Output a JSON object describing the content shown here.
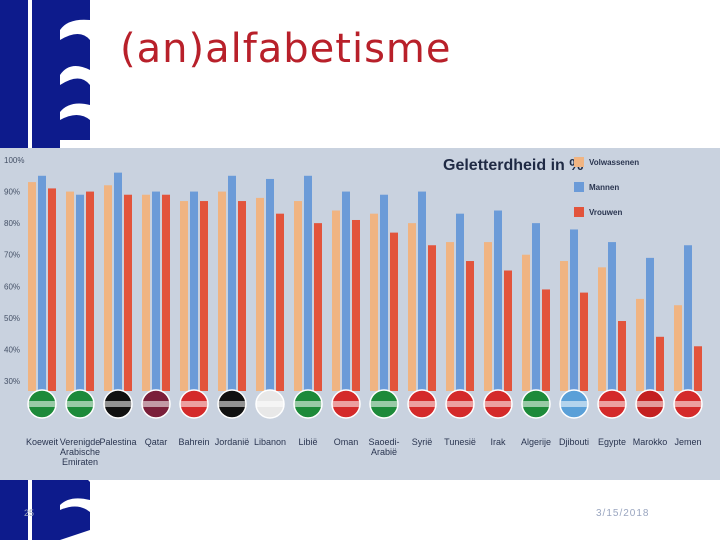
{
  "slide": {
    "title": "(an)alfabetisme",
    "number": "25",
    "date": "3/15/2018"
  },
  "colors": {
    "title": "#b8202a",
    "left_bar": "#0d1b8c",
    "volwassenen": "#f0b482",
    "mannen": "#6b9bd8",
    "vrouwen": "#e2543c",
    "chart_bg": "#c9d2df"
  },
  "chart_data": {
    "type": "bar",
    "title": "Geletterdheid in %",
    "ylim": [
      30,
      100
    ],
    "yticks": [
      "30%",
      "40%",
      "50%",
      "60%",
      "70%",
      "80%",
      "90%",
      "100%"
    ],
    "legend_position": "top-right",
    "grid": false,
    "categories": [
      [
        "Koeweit"
      ],
      [
        "Verenigde",
        "Arabische",
        "Emiraten"
      ],
      [
        "Palestina"
      ],
      [
        "Qatar"
      ],
      [
        "Bahrein"
      ],
      [
        "Jordanië"
      ],
      [
        "Libanon"
      ],
      [
        "Libië"
      ],
      [
        "Oman"
      ],
      [
        "Saoedi-",
        "Arabië"
      ],
      [
        "Syrië"
      ],
      [
        "Tunesië"
      ],
      [
        "Irak"
      ],
      [
        "Algerije"
      ],
      [
        "Djibouti"
      ],
      [
        "Egypte"
      ],
      [
        "Marokko"
      ],
      [
        "Jemen"
      ]
    ],
    "series": [
      {
        "name": "Volwassenen",
        "values": [
          93,
          90,
          92,
          89,
          87,
          90,
          88,
          87,
          84,
          83,
          80,
          74,
          74,
          70,
          68,
          66,
          56,
          54
        ]
      },
      {
        "name": "Mannen",
        "values": [
          95,
          89,
          96,
          90,
          90,
          95,
          94,
          95,
          90,
          89,
          90,
          83,
          84,
          80,
          78,
          74,
          69,
          73
        ]
      },
      {
        "name": "Vrouwen",
        "values": [
          91,
          90,
          89,
          89,
          87,
          87,
          83,
          80,
          81,
          77,
          73,
          68,
          65,
          59,
          58,
          49,
          44,
          41
        ]
      }
    ]
  }
}
